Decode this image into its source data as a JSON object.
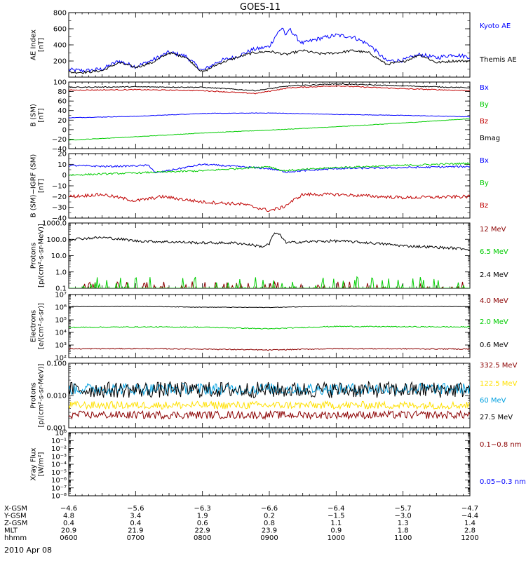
{
  "title": "GOES-11",
  "date_label": "2010 Apr 08",
  "colors": {
    "black": "#000000",
    "blue": "#0000ff",
    "red": "#c00000",
    "green": "#00cc00",
    "darkred": "#8b0000",
    "yellow": "#ffe000",
    "cyan": "#00a0e0"
  },
  "chart_data": [
    {
      "id": "ae",
      "type": "line",
      "ylabel": "AE Index\n[nT]",
      "scale": "linear",
      "ylim": [
        0,
        800
      ],
      "yticks": [
        {
          "v": 200,
          "t": "200"
        },
        {
          "v": 400,
          "t": "400"
        },
        {
          "v": 600,
          "t": "600"
        },
        {
          "v": 800,
          "t": "800"
        }
      ],
      "yminor": 100,
      "series": [
        {
          "name": "Kyoto AE",
          "color": "blue",
          "noise": 25,
          "x": [
            0,
            0.25,
            0.5,
            0.75,
            1.0,
            1.25,
            1.5,
            1.75,
            2.0,
            2.25,
            2.5,
            2.75,
            3.0,
            3.1,
            3.2,
            3.25,
            3.3,
            3.45,
            3.5,
            3.75,
            4.0,
            4.25,
            4.5,
            4.75,
            5.0,
            5.25,
            5.5,
            5.75,
            6.0
          ],
          "y": [
            90,
            80,
            100,
            200,
            130,
            210,
            310,
            260,
            80,
            200,
            250,
            340,
            380,
            520,
            620,
            500,
            600,
            450,
            420,
            480,
            520,
            500,
            400,
            200,
            210,
            280,
            240,
            280,
            250
          ]
        },
        {
          "name": "Themis AE",
          "color": "black",
          "noise": 15,
          "x": [
            0,
            0.25,
            0.5,
            0.75,
            1.0,
            1.25,
            1.5,
            1.75,
            2.0,
            2.25,
            2.5,
            2.75,
            3.0,
            3.25,
            3.5,
            3.75,
            4.0,
            4.25,
            4.5,
            4.75,
            5.0,
            5.25,
            5.5,
            5.75,
            6.0
          ],
          "y": [
            60,
            60,
            80,
            180,
            120,
            180,
            300,
            250,
            60,
            170,
            240,
            300,
            320,
            280,
            330,
            290,
            300,
            330,
            300,
            160,
            190,
            280,
            180,
            200,
            200
          ]
        }
      ]
    },
    {
      "id": "bgsm",
      "type": "line",
      "ylabel": "B (SM)\n[nT]",
      "scale": "linear",
      "ylim": [
        -40,
        100
      ],
      "yticks": [
        {
          "v": -40,
          "t": "−40"
        },
        {
          "v": -20,
          "t": "−20"
        },
        {
          "v": 0,
          "t": "0"
        },
        {
          "v": 20,
          "t": "20"
        },
        {
          "v": 40,
          "t": "40"
        },
        {
          "v": 60,
          "t": "60"
        },
        {
          "v": 80,
          "t": "80"
        },
        {
          "v": 100,
          "t": "100"
        }
      ],
      "yminor": 10,
      "series": [
        {
          "name": "Bx",
          "color": "blue",
          "noise": 0.5,
          "x": [
            0,
            1,
            2,
            3,
            4,
            5,
            6
          ],
          "y": [
            25,
            28,
            34,
            35,
            32,
            30,
            27
          ]
        },
        {
          "name": "By",
          "color": "green",
          "noise": 0.5,
          "x": [
            0,
            1,
            2,
            3,
            4,
            5,
            6
          ],
          "y": [
            -22,
            -15,
            -7,
            -1,
            6,
            14,
            23
          ]
        },
        {
          "name": "Bz",
          "color": "red",
          "noise": 1,
          "x": [
            0,
            1,
            2,
            2.8,
            3.3,
            4,
            5,
            6
          ],
          "y": [
            83,
            84,
            82,
            76,
            88,
            92,
            86,
            82
          ]
        },
        {
          "name": "Bmag",
          "color": "black",
          "noise": 1,
          "x": [
            0,
            1,
            2,
            2.8,
            3.3,
            4,
            5,
            6
          ],
          "y": [
            89,
            90,
            89,
            82,
            92,
            96,
            92,
            88
          ]
        }
      ]
    },
    {
      "id": "bsmigrf",
      "type": "line",
      "ylabel": "B (SM)−IGRF (SM)\n[nT]",
      "scale": "linear",
      "ylim": [
        -40,
        20
      ],
      "yticks": [
        {
          "v": -40,
          "t": "−40"
        },
        {
          "v": -30,
          "t": "−30"
        },
        {
          "v": -20,
          "t": "−20"
        },
        {
          "v": -10,
          "t": "−10"
        },
        {
          "v": 0,
          "t": "0"
        },
        {
          "v": 10,
          "t": "10"
        },
        {
          "v": 20,
          "t": "20"
        }
      ],
      "yminor": 5,
      "series": [
        {
          "name": "Bx",
          "color": "blue",
          "noise": 0.8,
          "x": [
            0,
            0.6,
            1.2,
            1.3,
            2.0,
            2.5,
            3.0,
            3.25,
            4.0,
            5.0,
            6.0
          ],
          "y": [
            9,
            8,
            9,
            2,
            10,
            8,
            6,
            3,
            6,
            7,
            8
          ]
        },
        {
          "name": "By",
          "color": "green",
          "noise": 0.8,
          "x": [
            0,
            1,
            2,
            3,
            3.2,
            4,
            5,
            6
          ],
          "y": [
            0,
            2,
            4,
            8,
            4,
            7,
            9,
            11
          ]
        },
        {
          "name": "Bz",
          "color": "red",
          "noise": 1.5,
          "x": [
            0,
            0.5,
            1.0,
            1.4,
            2.0,
            2.6,
            3.0,
            3.2,
            3.5,
            4.0,
            5.0,
            6.0
          ],
          "y": [
            -20,
            -18,
            -24,
            -20,
            -25,
            -27,
            -33,
            -30,
            -18,
            -18,
            -21,
            -20
          ]
        }
      ]
    },
    {
      "id": "protons_low",
      "type": "line",
      "ylabel": "Protons\n[p/(cm²-s-sr-MeV)]",
      "scale": "log",
      "ylim": [
        0.1,
        1000
      ],
      "yticks": [
        {
          "v": 0.1,
          "t": "0.1"
        },
        {
          "v": 1,
          "t": "1.0"
        },
        {
          "v": 10,
          "t": "10.0"
        },
        {
          "v": 100,
          "t": "100.0"
        },
        {
          "v": 1000,
          "t": "1000.0"
        }
      ],
      "series": [
        {
          "name": "12 MeV",
          "color": "darkred",
          "spiky": true,
          "base": 0.1,
          "peak": 0.18,
          "x": [
            0,
            6
          ],
          "y": [
            0.1,
            0.1
          ]
        },
        {
          "name": "6.5 MeV",
          "color": "green",
          "spiky": true,
          "base": 0.1,
          "peak": 0.3,
          "x": [
            0,
            6
          ],
          "y": [
            0.1,
            0.1
          ]
        },
        {
          "name": "2.4 MeV",
          "color": "black",
          "noise": 0.08,
          "x": [
            0,
            0.5,
            1.0,
            1.5,
            2.0,
            2.5,
            2.9,
            3.0,
            3.1,
            3.25,
            3.5,
            4.0,
            5.0,
            6.0
          ],
          "y": [
            100,
            130,
            80,
            70,
            60,
            60,
            35,
            50,
            250,
            60,
            70,
            80,
            40,
            25
          ]
        }
      ]
    },
    {
      "id": "electrons",
      "type": "line",
      "ylabel": "Electrons\n[e/(cm²-s-sr)]",
      "scale": "log",
      "ylim": [
        100,
        10000000
      ],
      "yticks": [
        {
          "v": 100,
          "t": "10²"
        },
        {
          "v": 1000,
          "t": "10³"
        },
        {
          "v": 10000,
          "t": "10⁴"
        },
        {
          "v": 100000,
          "t": "10⁵"
        },
        {
          "v": 1000000,
          "t": "10⁶"
        },
        {
          "v": 10000000,
          "t": "10⁷"
        }
      ],
      "series": [
        {
          "name": "4.0 MeV",
          "color": "darkred",
          "noise": 0.04,
          "x": [
            0,
            1,
            2,
            3,
            4,
            5,
            6
          ],
          "y": [
            500,
            520,
            480,
            400,
            520,
            500,
            480
          ]
        },
        {
          "name": "2.0 MeV",
          "color": "green",
          "noise": 0.04,
          "x": [
            0,
            1,
            2,
            3,
            4,
            5,
            6
          ],
          "y": [
            25000,
            27000,
            26000,
            19000,
            30000,
            28000,
            27000
          ]
        },
        {
          "name": "0.6 MeV",
          "color": "black",
          "noise": 0.02,
          "x": [
            0,
            1,
            2,
            3,
            4,
            5,
            6
          ],
          "y": [
            1100000,
            1150000,
            1000000,
            950000,
            1200000,
            1150000,
            1100000
          ]
        }
      ]
    },
    {
      "id": "protons_high",
      "type": "line",
      "ylabel": "Protons\n[p/(cm²-s-sr-MeV)]",
      "scale": "log",
      "ylim": [
        0.001,
        0.1
      ],
      "yticks": [
        {
          "v": 0.001,
          "t": "0.001"
        },
        {
          "v": 0.01,
          "t": "0.010"
        },
        {
          "v": 0.1,
          "t": "0.100"
        }
      ],
      "series": [
        {
          "name": "332.5 MeV",
          "color": "darkred",
          "noise": 0.12,
          "x": [
            0,
            6
          ],
          "y": [
            0.0025,
            0.0025
          ]
        },
        {
          "name": "122.5 MeV",
          "color": "yellow",
          "noise": 0.12,
          "x": [
            0,
            6
          ],
          "y": [
            0.005,
            0.005
          ]
        },
        {
          "name": "60 MeV",
          "color": "cyan",
          "noise": 0.18,
          "x": [
            0,
            6
          ],
          "y": [
            0.016,
            0.016
          ]
        },
        {
          "name": "27.5 MeV",
          "color": "black",
          "noise": 0.25,
          "x": [
            0,
            6
          ],
          "y": [
            0.015,
            0.015
          ]
        }
      ]
    },
    {
      "id": "xray",
      "type": "line",
      "ylabel": "Xray Flux\n[W/m²]",
      "scale": "log",
      "ylim": [
        1e-08,
        1
      ],
      "yticks": [
        {
          "v": 1e-08,
          "t": "10⁻⁸"
        },
        {
          "v": 1e-07,
          "t": "10⁻⁷"
        },
        {
          "v": 1e-06,
          "t": "10⁻⁶"
        },
        {
          "v": 1e-05,
          "t": "10⁻⁵"
        },
        {
          "v": 0.0001,
          "t": "10⁻⁴"
        },
        {
          "v": 0.001,
          "t": "10⁻³"
        },
        {
          "v": 0.01,
          "t": "10⁻²"
        },
        {
          "v": 0.1,
          "t": "10⁻¹"
        },
        {
          "v": 1,
          "t": "10⁰"
        }
      ],
      "series": [
        {
          "name": "0.1−0.8 nm",
          "color": "darkred",
          "x": [],
          "y": []
        },
        {
          "name": "0.05−0.3 nm",
          "color": "blue",
          "x": [],
          "y": []
        }
      ]
    }
  ],
  "x_axis": {
    "xlim": [
      0,
      6
    ],
    "rows": [
      {
        "label": "X-GSM",
        "values": [
          "−4.6",
          "−5.6",
          "−6.3",
          "−6.6",
          "−6.4",
          "−5.7",
          "−4.7"
        ]
      },
      {
        "label": "Y-GSM",
        "values": [
          "4.8",
          "3.4",
          "1.9",
          "0.2",
          "−1.5",
          "−3.0",
          "−4.4"
        ]
      },
      {
        "label": "Z-GSM",
        "values": [
          "0.4",
          "0.4",
          "0.6",
          "0.8",
          "1.1",
          "1.3",
          "1.4"
        ]
      },
      {
        "label": "MLT",
        "values": [
          "20.9",
          "21.9",
          "22.9",
          "23.9",
          "0.9",
          "1.8",
          "2.8"
        ]
      },
      {
        "label": "hhmm",
        "values": [
          "0600",
          "0700",
          "0800",
          "0900",
          "1000",
          "1100",
          "1200"
        ]
      }
    ]
  }
}
